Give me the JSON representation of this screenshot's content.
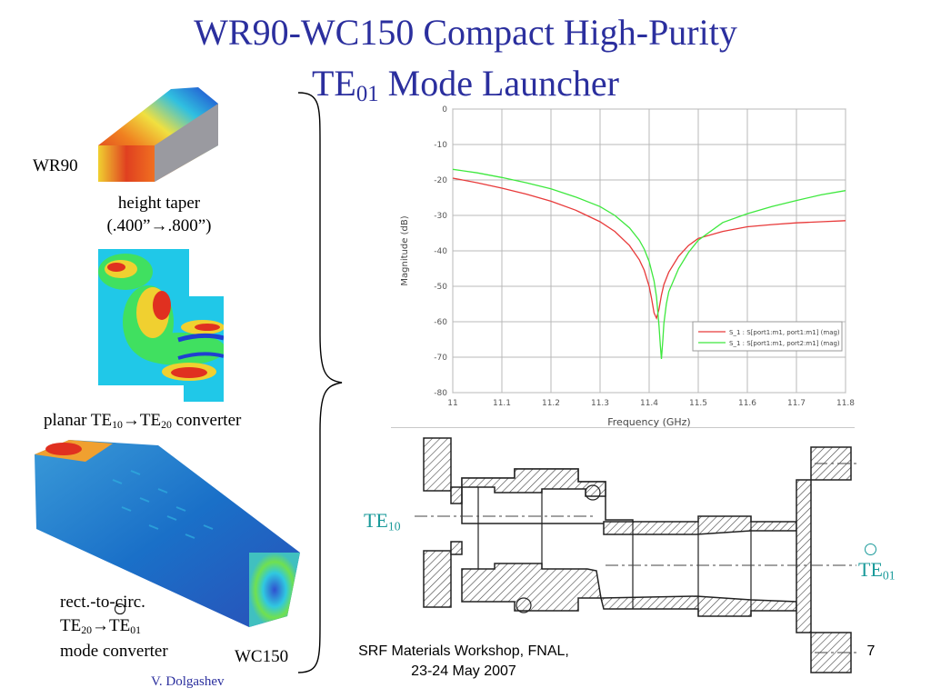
{
  "slide": {
    "title_line1": "WR90-WC150 Compact High-Purity",
    "title_line2_prefix": "TE",
    "title_line2_sub": "01",
    "title_line2_suffix": " Mode Launcher",
    "page_number": "7",
    "author": "V. Dolgashev",
    "footer_line1": "SRF Materials Workshop, FNAL,",
    "footer_line2": "23-24 May 2007"
  },
  "labels": {
    "wr90": "WR90",
    "wc150": "WC150",
    "height_taper_line1": "height taper",
    "height_taper_line2": "(.400”→.800”)",
    "planar_prefix": "planar TE",
    "planar_sub1": "10",
    "planar_arrow": "→",
    "planar_te": "TE",
    "planar_sub2": "20",
    "planar_suffix": " converter",
    "rect_line1": "rect.-to-circ.",
    "rect_te1": "TE",
    "rect_sub1": "20",
    "rect_arrow": "→",
    "rect_te2": "TE",
    "rect_sub2": "01",
    "rect_line3": "mode converter",
    "te10_main": "TE",
    "te10_sub": "10",
    "te01_main": "TE",
    "te01_sub": "01"
  },
  "colors": {
    "title": "#2b2f9e",
    "teal_label": "#1a9a9a",
    "series_red": "#e83a3a",
    "series_green": "#3ee83e"
  },
  "chart_data": {
    "type": "line",
    "xlabel": "Frequency (GHz)",
    "ylabel": "Magnitude (dB)",
    "xlim": [
      11.0,
      11.8
    ],
    "ylim": [
      -80,
      0
    ],
    "x_ticks": [
      "11",
      "11.1",
      "11.2",
      "11.3",
      "11.4",
      "11.5",
      "11.6",
      "11.7",
      "11.8"
    ],
    "y_ticks": [
      "0",
      "-10",
      "-20",
      "-30",
      "-40",
      "-50",
      "-60",
      "-70",
      "-80"
    ],
    "grid": true,
    "legend_position": "bottom-right",
    "series": [
      {
        "name": "S_1 : S[port1:m1, port1:m1] (mag)",
        "color": "#e83a3a",
        "x": [
          11.0,
          11.05,
          11.1,
          11.15,
          11.2,
          11.25,
          11.3,
          11.33,
          11.36,
          11.38,
          11.39,
          11.4,
          11.405,
          11.41,
          11.415,
          11.42,
          11.425,
          11.43,
          11.44,
          11.46,
          11.48,
          11.5,
          11.55,
          11.6,
          11.65,
          11.7,
          11.75,
          11.8
        ],
        "y": [
          -19.5,
          -20.8,
          -22.3,
          -24.0,
          -26.0,
          -28.5,
          -31.8,
          -34.5,
          -38.5,
          -42.5,
          -45.5,
          -50.0,
          -53.5,
          -57.5,
          -59.0,
          -56.5,
          -52.5,
          -49.5,
          -46.0,
          -41.5,
          -38.5,
          -36.5,
          -34.5,
          -33.2,
          -32.6,
          -32.1,
          -31.8,
          -31.5
        ]
      },
      {
        "name": "S_1 : S[port1:m1, port2:m1] (mag)",
        "color": "#3ee83e",
        "x": [
          11.0,
          11.05,
          11.1,
          11.15,
          11.2,
          11.25,
          11.3,
          11.33,
          11.36,
          11.38,
          11.39,
          11.4,
          11.41,
          11.415,
          11.42,
          11.423,
          11.425,
          11.428,
          11.43,
          11.435,
          11.44,
          11.46,
          11.48,
          11.5,
          11.55,
          11.6,
          11.65,
          11.7,
          11.75,
          11.8
        ],
        "y": [
          -17.0,
          -18.0,
          -19.3,
          -20.8,
          -22.5,
          -24.8,
          -27.5,
          -30.0,
          -33.5,
          -37.0,
          -39.5,
          -43.0,
          -48.5,
          -53.0,
          -61.0,
          -67.0,
          -70.5,
          -65.0,
          -60.5,
          -55.0,
          -51.5,
          -45.0,
          -40.5,
          -37.0,
          -32.0,
          -29.5,
          -27.5,
          -25.8,
          -24.2,
          -23.0
        ]
      }
    ]
  }
}
